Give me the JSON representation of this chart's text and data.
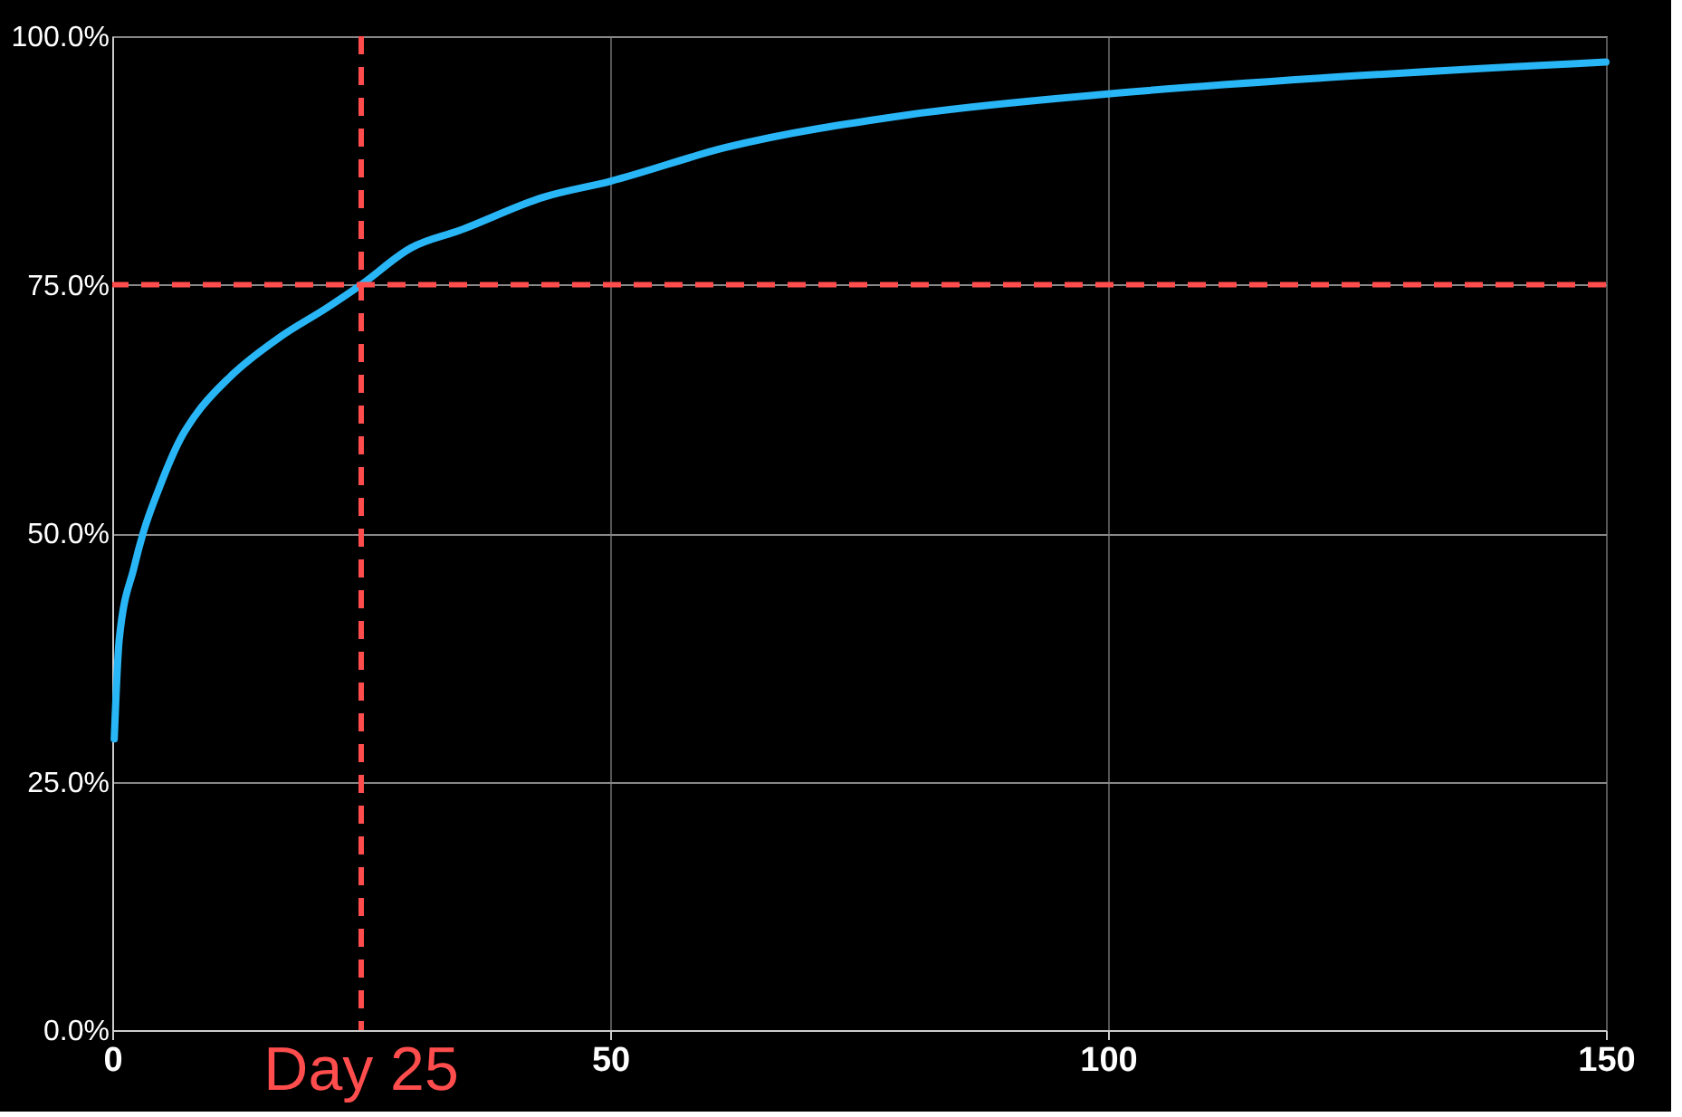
{
  "chart_data": {
    "type": "line",
    "x": [
      0.2,
      0.7,
      2.2,
      3.1,
      4.7,
      6.8,
      8.3,
      11.9,
      16.8,
      21.6,
      25,
      30,
      35,
      43.3,
      50,
      61.6,
      80,
      100,
      121.6,
      150
    ],
    "series": [
      {
        "color": "#29b6f6",
        "values": [
          29.3,
          39.3,
          46.6,
          50,
          54.5,
          59.4,
          61.8,
          65.8,
          69.7,
          72.7,
          75,
          78.7,
          80.5,
          83.8,
          85.4,
          88.8,
          92.1,
          94.2,
          95.8,
          97.4
        ]
      }
    ],
    "xlim": [
      0,
      150
    ],
    "xticks": [
      0,
      50,
      100,
      150
    ],
    "ylim": [
      0,
      100
    ],
    "yticks": [
      {
        "value": 0,
        "label": "0.0%"
      },
      {
        "value": 25,
        "label": "25.0%"
      },
      {
        "value": 50,
        "label": "50.0%"
      },
      {
        "value": 75,
        "label": "75.0%"
      },
      {
        "value": 100,
        "label": "100.0%"
      }
    ],
    "ref_lines": [
      {
        "axis": "x",
        "value": 25,
        "label": "Day 25",
        "color": "#ff4d4d",
        "line_style": "dashed"
      },
      {
        "axis": "y",
        "value": 75,
        "color": "#ff4d4d",
        "line_style": "dashed"
      }
    ],
    "grid": true,
    "marker": "none",
    "line_style": "solid"
  }
}
